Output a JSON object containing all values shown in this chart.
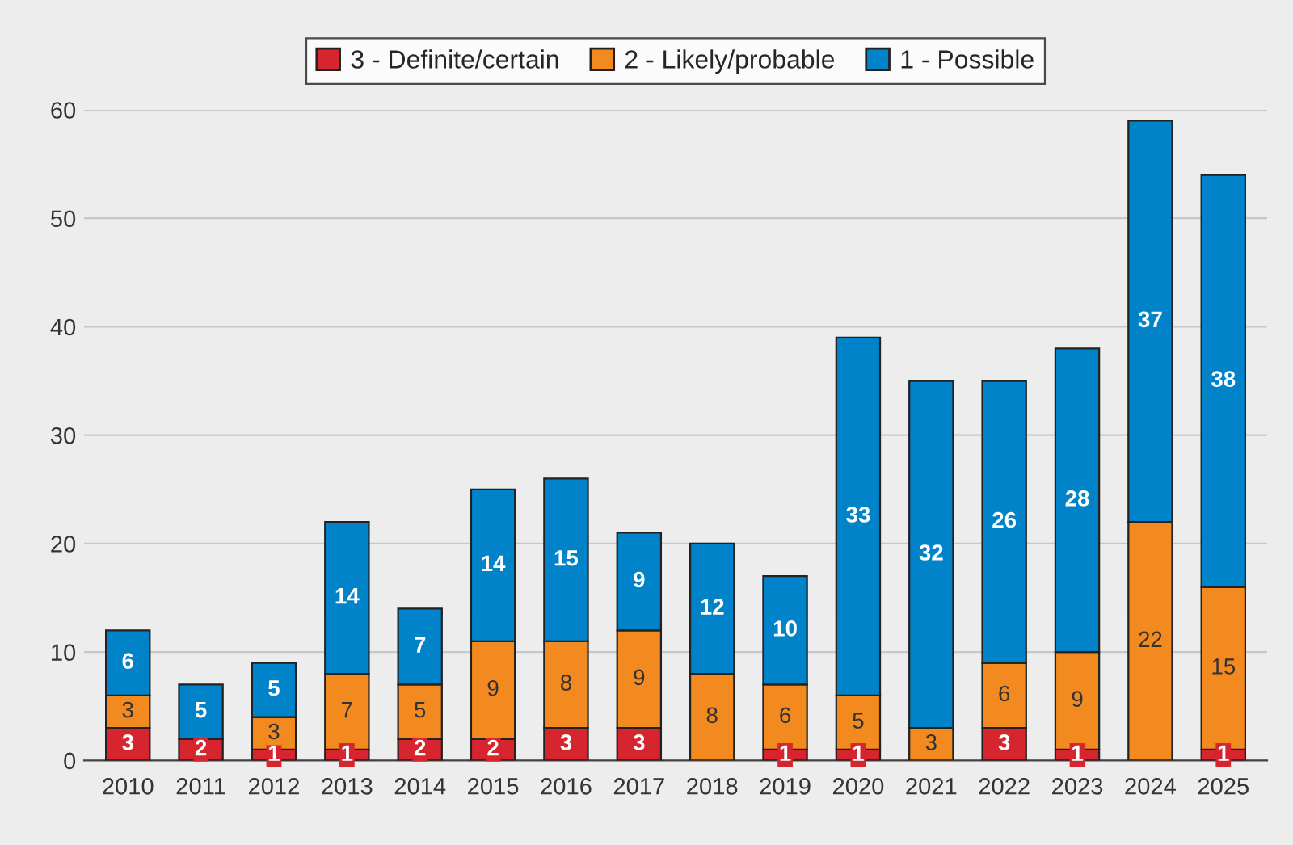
{
  "chart_data": {
    "type": "bar",
    "stacked": true,
    "categories": [
      "2010",
      "2011",
      "2012",
      "2013",
      "2014",
      "2015",
      "2016",
      "2017",
      "2018",
      "2019",
      "2020",
      "2021",
      "2022",
      "2023",
      "2024",
      "2025"
    ],
    "series": [
      {
        "name": "3 - Definite/certain",
        "color": "#d7252f",
        "values": [
          3,
          2,
          1,
          1,
          2,
          2,
          3,
          3,
          0,
          1,
          1,
          0,
          3,
          1,
          0,
          1
        ],
        "value_labels": [
          "3",
          "2",
          "1",
          "1",
          "2",
          "2",
          "3",
          "3",
          null,
          "1",
          "1",
          null,
          "3",
          "1",
          null,
          "1"
        ]
      },
      {
        "name": "2 - Likely/probable",
        "color": "#f28a1f",
        "values": [
          3,
          0,
          3,
          7,
          5,
          9,
          8,
          9,
          8,
          6,
          5,
          3,
          6,
          9,
          22,
          15
        ],
        "value_labels": [
          "3",
          null,
          "3",
          "7",
          "5",
          "9",
          "8",
          "9",
          "8",
          "6",
          "5",
          "3",
          "6",
          "9",
          "22",
          "15"
        ]
      },
      {
        "name": "1 - Possible",
        "color": "#0083c9",
        "values": [
          6,
          5,
          5,
          14,
          7,
          14,
          15,
          9,
          12,
          10,
          33,
          32,
          26,
          28,
          37,
          38
        ],
        "value_labels": [
          "6",
          "5",
          "5",
          "14",
          "7",
          "14",
          "15",
          "9",
          "12",
          "10",
          "33",
          "32",
          "26",
          "28",
          "37",
          "38"
        ]
      }
    ],
    "ylim": [
      0,
      60
    ],
    "yticks": [
      0,
      10,
      20,
      30,
      40,
      50,
      60
    ],
    "grid": "y",
    "legend": "top"
  }
}
